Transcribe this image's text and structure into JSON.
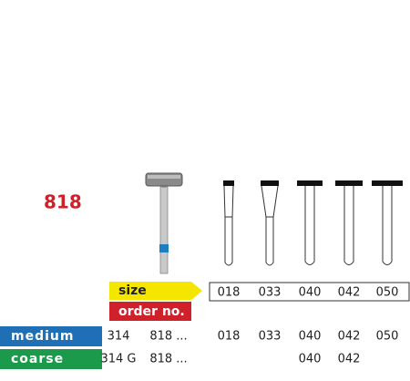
{
  "title": "818",
  "size_label": "size",
  "order_label": "order no.",
  "sizes": [
    "018",
    "033",
    "040",
    "042",
    "050"
  ],
  "rows": [
    {
      "grit": "medium",
      "code": "314",
      "prefix": "818 ...",
      "values": [
        "018",
        "033",
        "040",
        "042",
        "050"
      ]
    },
    {
      "grit": "coarse",
      "code": "314 G",
      "prefix": "818 ...",
      "values": [
        null,
        null,
        "040",
        "042",
        null
      ]
    }
  ]
}
